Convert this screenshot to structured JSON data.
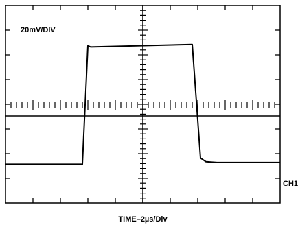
{
  "chart_data": {
    "type": "line",
    "title": "",
    "scale_label": "20mV/DIV",
    "xlabel": "TIME–2µs/Div",
    "channel_label": "CH1",
    "grid": false,
    "divisions": {
      "x": 10,
      "y": 8
    },
    "xlim": [
      -5,
      5
    ],
    "ylim": [
      -4,
      4
    ],
    "series": [
      {
        "name": "",
        "x": [
          -5.0,
          -2.2,
          -2.0,
          -1.9,
          1.8,
          2.1,
          2.3,
          2.7,
          5.0
        ],
        "y": [
          -2.4,
          -2.4,
          2.4,
          2.35,
          2.45,
          -2.15,
          -2.3,
          -2.33,
          -2.33
        ]
      }
    ]
  }
}
